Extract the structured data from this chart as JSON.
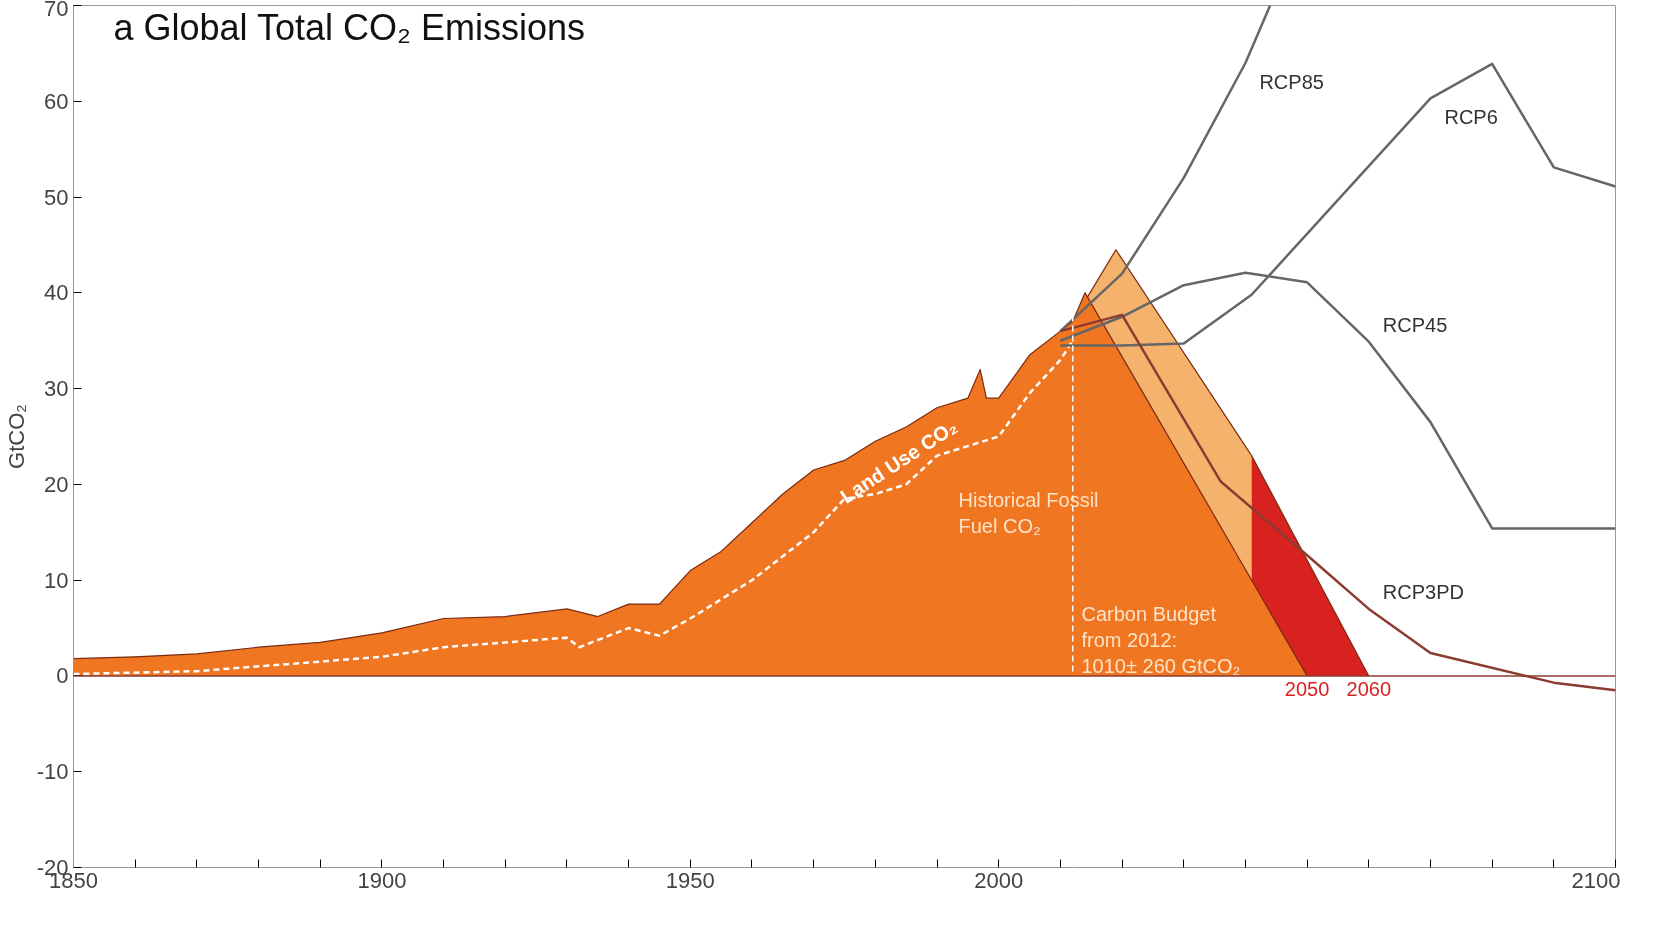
{
  "chart_data": {
    "type": "area",
    "title": "a Global Total CO₂ Emissions",
    "ylabel": "GtCO₂",
    "xlim": [
      1850,
      2100
    ],
    "ylim": [
      -20,
      70
    ],
    "xticks": [
      1850,
      {
        "value": 1860,
        "label": null
      },
      {
        "value": 1870,
        "label": null
      },
      {
        "value": 1880,
        "label": null
      },
      {
        "value": 1890,
        "label": null
      },
      1900,
      {
        "value": 1910,
        "label": null
      },
      {
        "value": 1920,
        "label": null
      },
      {
        "value": 1930,
        "label": null
      },
      {
        "value": 1940,
        "label": null
      },
      1950,
      {
        "value": 1960,
        "label": null
      },
      {
        "value": 1970,
        "label": null
      },
      {
        "value": 1980,
        "label": null
      },
      {
        "value": 1990,
        "label": null
      },
      2000,
      {
        "value": 2010,
        "label": null
      },
      {
        "value": 2020,
        "label": null
      },
      {
        "value": 2030,
        "label": null
      },
      {
        "value": 2040,
        "label": null
      },
      {
        "value": 2050,
        "label": null
      },
      {
        "value": 2060,
        "label": null
      },
      {
        "value": 2070,
        "label": null
      },
      {
        "value": 2080,
        "label": null
      },
      {
        "value": 2090,
        "label": null
      },
      2100
    ],
    "yticks": [
      -20,
      -10,
      0,
      10,
      20,
      30,
      40,
      50,
      60,
      70
    ],
    "series": [
      {
        "color": "#f5b26c",
        "x": [
          2012,
          2019,
          2041
        ],
        "values": [
          37,
          44.5,
          23
        ]
      },
      {
        "color": "#d8221f",
        "x": [
          2041,
          2060
        ],
        "values": [
          23,
          0
        ]
      },
      {
        "color": "#f07622",
        "x": [
          1850,
          1860,
          1870,
          1880,
          1890,
          1900,
          1910,
          1920,
          1930,
          1935,
          1940,
          1945,
          1950,
          1955,
          1960,
          1965,
          1970,
          1975,
          1980,
          1985,
          1990,
          1995,
          1997,
          1998,
          2000,
          2005,
          2010,
          2012,
          2014,
          2050
        ],
        "values": [
          1.8,
          2.0,
          2.3,
          3.0,
          3.5,
          4.5,
          6.0,
          6.2,
          7.0,
          6.2,
          7.5,
          7.5,
          11,
          13,
          16,
          19,
          21.5,
          22.5,
          24.5,
          26,
          28,
          29,
          32,
          29,
          29,
          33.5,
          36,
          37,
          40,
          0
        ]
      },
      {
        "type": "line",
        "line_style": "dashed",
        "color": "#ffffff",
        "x": [
          1850,
          1870,
          1900,
          1910,
          1920,
          1930,
          1932,
          1940,
          1945,
          1950,
          1960,
          1970,
          1975,
          1980,
          1985,
          1990,
          1995,
          2000,
          2005,
          2010,
          2012
        ],
        "values": [
          0.2,
          0.5,
          2,
          3,
          3.5,
          4,
          3,
          5,
          4.2,
          6,
          10,
          15,
          18.5,
          19,
          20,
          23,
          24,
          25,
          29.5,
          33,
          35
        ]
      },
      {
        "type": "line",
        "name": "RCP85",
        "color": "#666666",
        "x": [
          2010,
          2020,
          2030,
          2040,
          2044
        ],
        "values": [
          36,
          42,
          52,
          64,
          70
        ]
      },
      {
        "type": "line",
        "name": "RCP6",
        "color": "#666666",
        "x": [
          2010,
          2020,
          2030,
          2041,
          2070,
          2080,
          2090,
          2100
        ],
        "values": [
          34.5,
          34.5,
          34.7,
          39.8,
          60.3,
          63.9,
          53.1,
          51.1
        ]
      },
      {
        "type": "line",
        "name": "RCP45",
        "color": "#666666",
        "x": [
          2010,
          2020,
          2030,
          2040,
          2050,
          2060,
          2070,
          2080,
          2100
        ],
        "values": [
          35,
          37.5,
          40.8,
          42.1,
          41.1,
          34.9,
          26.5,
          15.4,
          15.4
        ]
      },
      {
        "type": "line",
        "name": "RCP3PD",
        "color": "#8c3b32",
        "x": [
          2010,
          2020,
          2036,
          2050,
          2060,
          2070,
          2090,
          2100
        ],
        "values": [
          36,
          37.7,
          20.3,
          12.6,
          7,
          2.4,
          -0.7,
          -1.5
        ]
      }
    ],
    "ref_lines": [
      {
        "axis": "x",
        "value": 2012,
        "color": "#ffffff",
        "line_style": "dashed"
      },
      {
        "axis": "y",
        "value": 0,
        "color": "#8c3b32",
        "line_style": "solid"
      }
    ],
    "annotations": [
      "Land Use CO₂",
      "Historical Fossil\nFuel CO₂",
      "Carbon Budget\nfrom 2012:\n1010± 260 GtCO₂",
      {
        "text": "2050",
        "x": 2050,
        "y": 0
      },
      {
        "text": "2060",
        "x": 2060,
        "y": 0
      }
    ],
    "grid": false
  }
}
